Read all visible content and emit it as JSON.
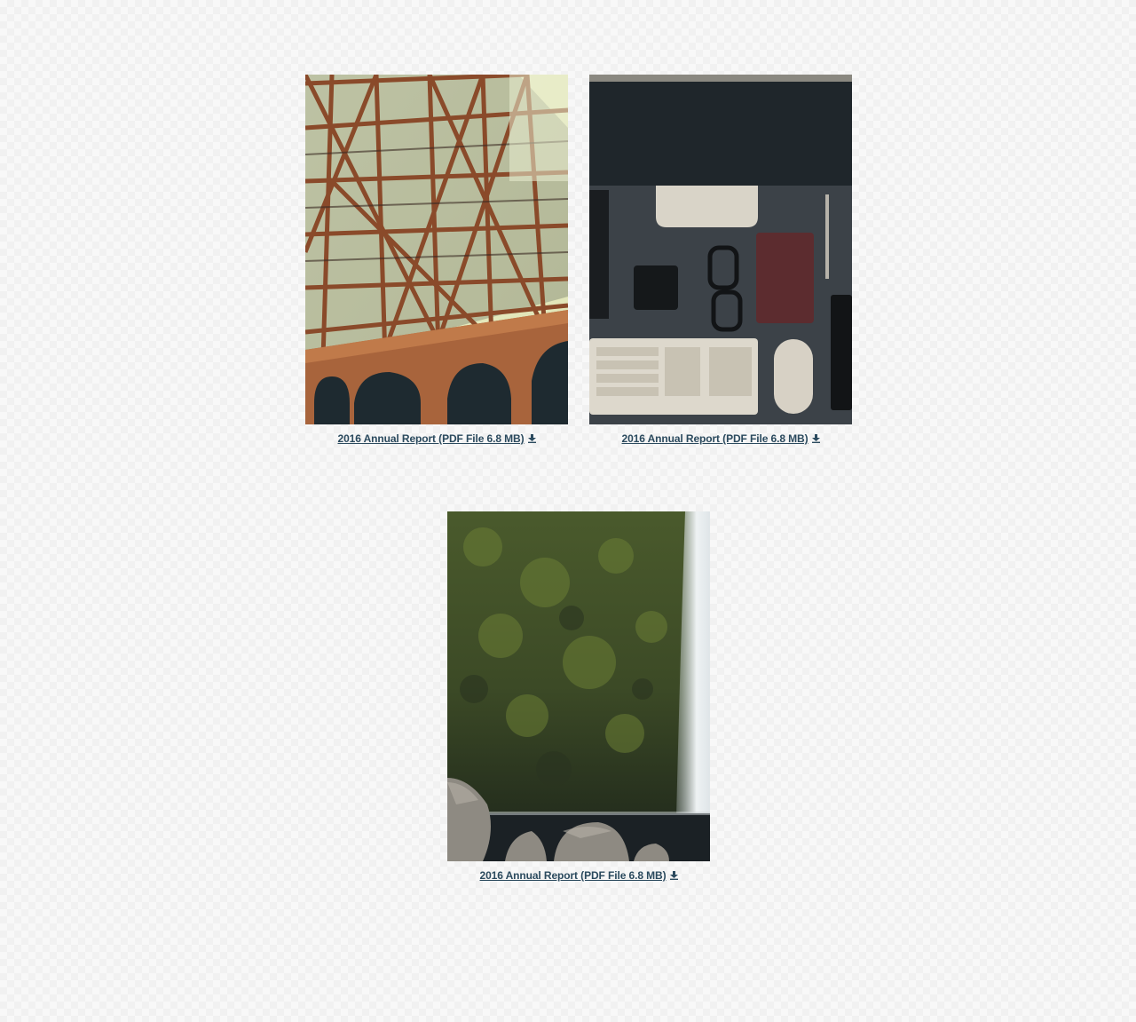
{
  "documents": [
    {
      "link_label": "2016 Annual Report (PDF File 6.8 MB)",
      "image_subject": "bridge-steel-truss",
      "icon": "download-icon"
    },
    {
      "link_label": "2016 Annual Report (PDF File 6.8 MB)",
      "image_subject": "desk-workspace-flatlay",
      "icon": "download-icon"
    },
    {
      "link_label": "2016 Annual Report (PDF File 6.8 MB)",
      "image_subject": "mossy-cliff-waterfall",
      "icon": "download-icon"
    }
  ],
  "colors": {
    "link": "#2b4a5e",
    "background": "#f8f8f8"
  }
}
